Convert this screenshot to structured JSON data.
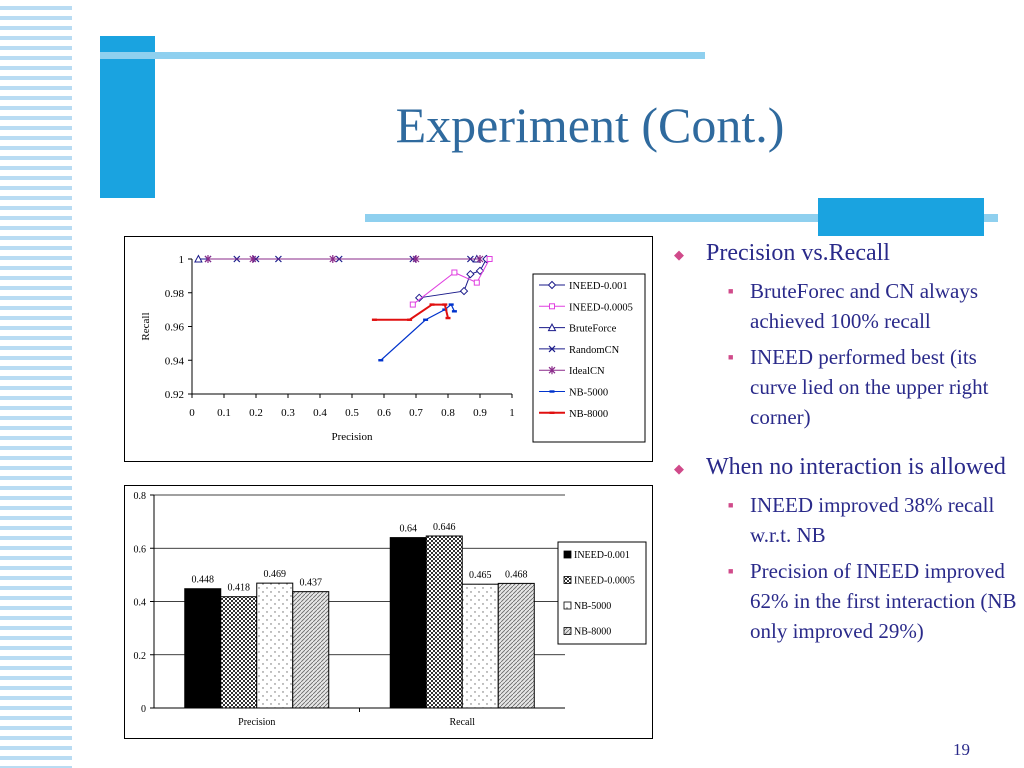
{
  "slide": {
    "title": "Experiment (Cont.)",
    "page_number": "19",
    "colors": {
      "accent_blue": "#1aa3e0",
      "light_blue": "#8fd0ef",
      "title_blue": "#2f6a9e",
      "text_navy": "#2a2a8a",
      "bullet_pink": "#d04a8a"
    }
  },
  "bullets": [
    {
      "text": "Precision vs.Recall",
      "sub": [
        {
          "text": "BruteForec and CN always achieved 100% recall"
        },
        {
          "text": "INEED performed best (its curve lied on the upper right corner)"
        }
      ]
    },
    {
      "text": "When no interaction is allowed",
      "sub": [
        {
          "text": "INEED improved 38% recall w.r.t. NB"
        },
        {
          "text": "Precision of INEED improved 62% in the first interaction (NB only improved 29%)"
        }
      ]
    }
  ],
  "chart_data": [
    {
      "type": "line",
      "title": "",
      "xlabel": "Precision",
      "ylabel": "Recall",
      "xlim": [
        0,
        1
      ],
      "ylim": [
        0.92,
        1
      ],
      "x_ticks": [
        0,
        0.1,
        0.2,
        0.3,
        0.4,
        0.5,
        0.6,
        0.7,
        0.8,
        0.9,
        1
      ],
      "x_tick_labels": [
        "0",
        "0.1",
        "0.2",
        "0.3",
        "0.4",
        "0.5",
        "0.6",
        "0.7",
        "0.8",
        "0.9",
        "1"
      ],
      "y_ticks": [
        0.92,
        0.94,
        0.96,
        0.98,
        1
      ],
      "y_tick_labels": [
        "0.92",
        "0.94",
        "0.96",
        "0.98",
        "1"
      ],
      "grid": false,
      "legend": "right",
      "series": [
        {
          "name": "INEED-0.001",
          "color": "#1a1a8a",
          "marker": "diamond",
          "x": [
            0.71,
            0.85,
            0.87,
            0.9,
            0.92
          ],
          "y": [
            0.977,
            0.981,
            0.991,
            0.993,
            1.0
          ]
        },
        {
          "name": "INEED-0.0005",
          "color": "#e040e0",
          "marker": "square",
          "x": [
            0.69,
            0.82,
            0.89,
            0.93
          ],
          "y": [
            0.973,
            0.992,
            0.986,
            1.0
          ]
        },
        {
          "name": "BruteForce",
          "color": "#1a1a8a",
          "marker": "triangle",
          "x": [
            0.02,
            0.89
          ],
          "y": [
            1.0,
            1.0
          ]
        },
        {
          "name": "RandomCN",
          "color": "#1a1a8a",
          "marker": "x",
          "x": [
            0.05,
            0.14,
            0.2,
            0.27,
            0.46,
            0.69,
            0.87
          ],
          "y": [
            1.0,
            1.0,
            1.0,
            1.0,
            1.0,
            1.0,
            1.0
          ]
        },
        {
          "name": "IdealCN",
          "color": "#8a2a8a",
          "marker": "star",
          "x": [
            0.05,
            0.19,
            0.44,
            0.7,
            0.9
          ],
          "y": [
            1.0,
            1.0,
            1.0,
            1.0,
            1.0
          ]
        },
        {
          "name": "NB-5000",
          "color": "#0033cc",
          "marker": "dash",
          "x": [
            0.59,
            0.73,
            0.79,
            0.81,
            0.82
          ],
          "y": [
            0.94,
            0.964,
            0.97,
            0.973,
            0.969
          ]
        },
        {
          "name": "NB-8000",
          "color": "#e01010",
          "marker": "dash",
          "x": [
            0.57,
            0.68,
            0.75,
            0.79,
            0.8
          ],
          "y": [
            0.964,
            0.964,
            0.973,
            0.973,
            0.965
          ]
        }
      ]
    },
    {
      "type": "bar",
      "title": "",
      "xlabel": "",
      "ylabel": "",
      "categories": [
        "Precision",
        "Recall"
      ],
      "ylim": [
        0,
        0.8
      ],
      "y_ticks": [
        0,
        0.2,
        0.4,
        0.6,
        0.8
      ],
      "y_tick_labels": [
        "0",
        "0.2",
        "0.4",
        "0.6",
        "0.8"
      ],
      "grid": "horizontal",
      "legend": "right",
      "series": [
        {
          "name": "INEED-0.001",
          "fill": "black",
          "values": [
            0.448,
            0.64
          ],
          "labels": [
            "0.448",
            "0.64"
          ]
        },
        {
          "name": "INEED-0.0005",
          "fill": "checker",
          "values": [
            0.418,
            0.646
          ],
          "labels": [
            "0.418",
            "0.646"
          ]
        },
        {
          "name": "NB-5000",
          "fill": "dots",
          "values": [
            0.469,
            0.465
          ],
          "labels": [
            "0.469",
            "0.465"
          ]
        },
        {
          "name": "NB-8000",
          "fill": "hatch",
          "values": [
            0.437,
            0.468
          ],
          "labels": [
            "0.437",
            "0.468"
          ]
        }
      ]
    }
  ]
}
